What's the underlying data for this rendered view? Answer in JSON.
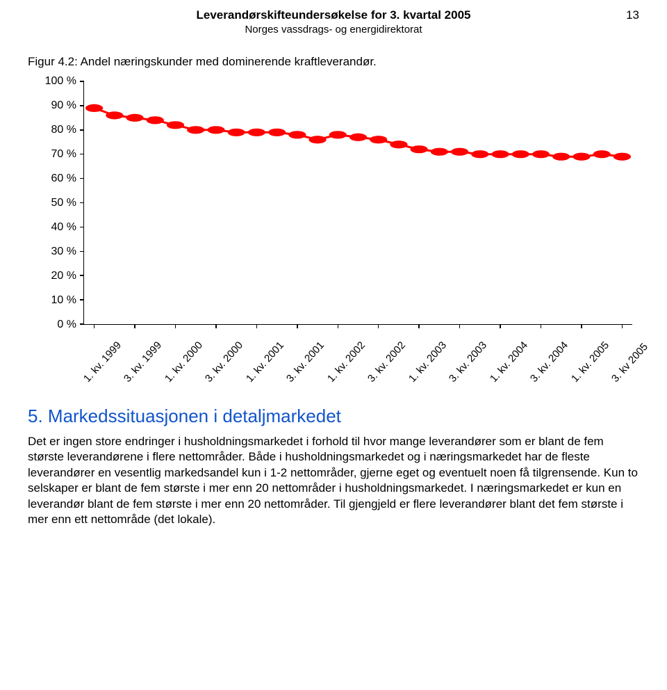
{
  "header": {
    "title_line1": "Leverandørskifteundersøkelse for 3. kvartal 2005",
    "title_line2": "Norges vassdrags- og energidirektorat",
    "page_number": "13"
  },
  "figure_caption": "Figur 4.2: Andel næringskunder med dominerende kraftleverandør.",
  "chart": {
    "type": "line",
    "ylim": [
      0,
      100
    ],
    "ytick_step": 10,
    "y_suffix": " %",
    "background_color": "#ffffff",
    "axis_color": "#000000",
    "series": {
      "color": "#ff0000",
      "marker_color": "#ff0000",
      "line_width": 3,
      "marker_radius": 6,
      "values": [
        89,
        86,
        85,
        84,
        82,
        80,
        80,
        79,
        79,
        79,
        78,
        76,
        78,
        77,
        76,
        74,
        72,
        71,
        71,
        70,
        70,
        70,
        70,
        69,
        69,
        70,
        69
      ]
    },
    "categories": [
      "1. kv. 1999",
      "",
      "3. kv. 1999",
      "",
      "1. kv. 2000",
      "",
      "3. kv. 2000",
      "",
      "1. kv. 2001",
      "",
      "3. kv. 2001",
      "",
      "1. kv. 2002",
      "",
      "3. kv. 2002",
      "",
      "1. kv. 2003",
      "",
      "3. kv. 2003",
      "",
      "1. kv. 2004",
      "",
      "3. kv. 2004",
      "",
      "1. kv. 2005",
      "",
      "3. kv 2005"
    ],
    "label_fontsize": 15,
    "tick_fontsize": 16
  },
  "section": {
    "title": "5. Markedssituasjonen i detaljmarkedet",
    "title_color": "#1155cc",
    "body": "Det er ingen store endringer i husholdningsmarkedet i forhold til hvor mange leverandører som er blant de fem største leverandørene i flere nettområder. Både i husholdningsmarkedet og i næringsmarkedet har de fleste leverandører en vesentlig markedsandel kun i 1-2 nettområder, gjerne eget og eventuelt noen få tilgrensende. Kun to selskaper er blant de fem største i mer enn 20 nettområder i husholdningsmarkedet. I næringsmarkedet er kun en leverandør blant de fem største i mer enn 20 nettområder. Til gjengjeld er flere leverandører blant det fem største i mer enn ett nettområde (det lokale)."
  }
}
